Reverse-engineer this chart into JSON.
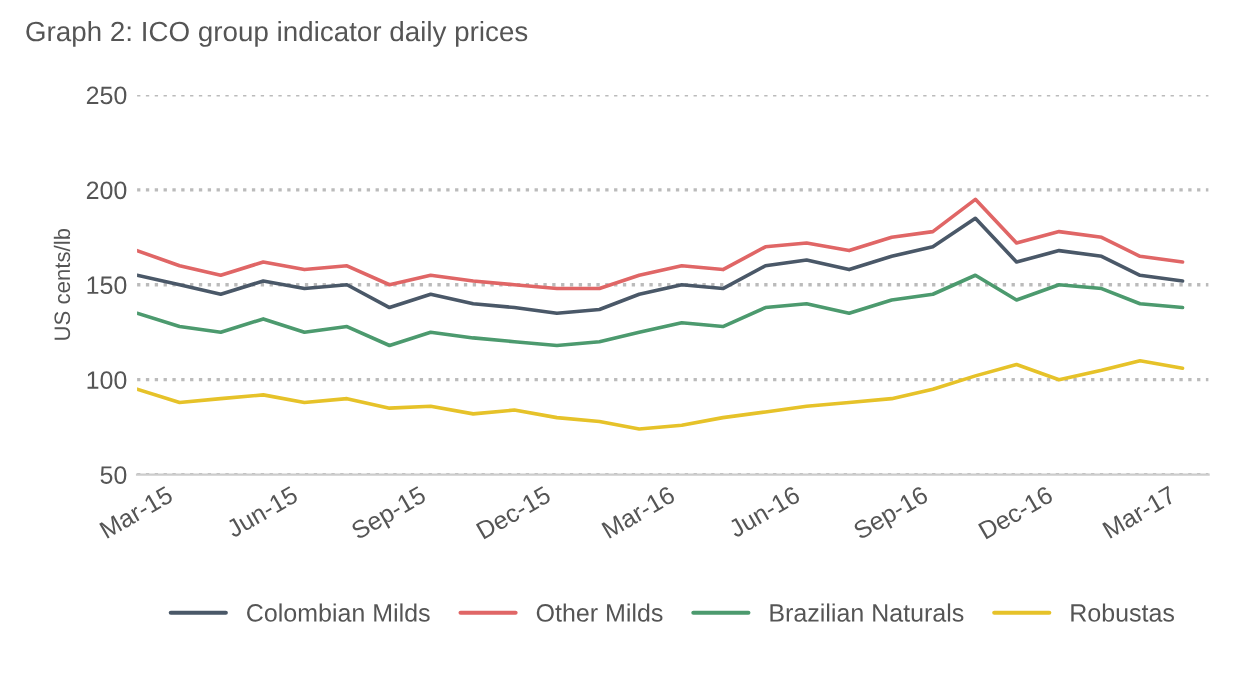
{
  "chart_data": {
    "type": "line",
    "title": "Graph 2: ICO group indicator daily prices",
    "ylabel": "US cents/lb",
    "x": [
      "2015-03",
      "2015-04",
      "2015-05",
      "2015-06",
      "2015-07",
      "2015-08",
      "2015-09",
      "2015-10",
      "2015-11",
      "2015-12",
      "2016-01",
      "2016-02",
      "2016-03",
      "2016-04",
      "2016-05",
      "2016-06",
      "2016-07",
      "2016-08",
      "2016-09",
      "2016-10",
      "2016-11",
      "2016-12",
      "2017-01",
      "2017-02",
      "2017-03",
      "2017-04"
    ],
    "series": [
      {
        "name": "Colombian Milds",
        "color": "#4a5868",
        "values": [
          155,
          150,
          145,
          152,
          148,
          150,
          138,
          145,
          140,
          138,
          135,
          137,
          145,
          150,
          148,
          160,
          163,
          158,
          165,
          170,
          185,
          162,
          168,
          165,
          155,
          152
        ]
      },
      {
        "name": "Other Milds",
        "color": "#e06666",
        "values": [
          168,
          160,
          155,
          162,
          158,
          160,
          150,
          155,
          152,
          150,
          148,
          148,
          155,
          160,
          158,
          170,
          172,
          168,
          175,
          178,
          195,
          172,
          178,
          175,
          165,
          162
        ]
      },
      {
        "name": "Brazilian Naturals",
        "color": "#4c9a6e",
        "values": [
          135,
          128,
          125,
          132,
          125,
          128,
          118,
          125,
          122,
          120,
          118,
          120,
          125,
          130,
          128,
          138,
          140,
          135,
          142,
          145,
          155,
          142,
          150,
          148,
          140,
          138
        ]
      },
      {
        "name": "Robustas",
        "color": "#e6c229",
        "values": [
          95,
          88,
          90,
          92,
          88,
          90,
          85,
          86,
          82,
          84,
          80,
          78,
          74,
          76,
          80,
          83,
          86,
          88,
          90,
          95,
          102,
          108,
          100,
          105,
          110,
          106
        ]
      }
    ],
    "xlim": [
      "2015-03-01",
      "2017-04-20"
    ],
    "xticks": [
      {
        "value": "2015-03-01",
        "label": "Mar-15"
      },
      {
        "value": "2015-06-01",
        "label": "Jun-15"
      },
      {
        "value": "2015-09-01",
        "label": "Sep-15"
      },
      {
        "value": "2015-12-01",
        "label": "Dec-15"
      },
      {
        "value": "2016-03-01",
        "label": "Mar-16"
      },
      {
        "value": "2016-06-01",
        "label": "Jun-16"
      },
      {
        "value": "2016-09-01",
        "label": "Sep-16"
      },
      {
        "value": "2016-12-01",
        "label": "Dec-16"
      },
      {
        "value": "2017-03-01",
        "label": "Mar-17"
      }
    ],
    "ylim": [
      50,
      250
    ],
    "yticks": [
      50,
      100,
      150,
      200,
      250
    ],
    "grid": "y",
    "legend": "bottom",
    "marker": "none",
    "line_style": "solid"
  }
}
